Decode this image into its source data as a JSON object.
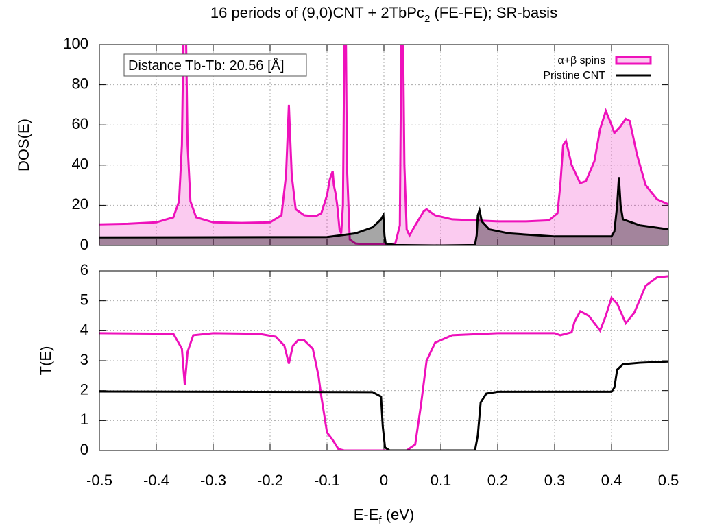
{
  "chart_data": [
    {
      "type": "area",
      "title": [
        "16 periods of (9,0)CNT + 2TbPc",
        "2",
        " (FE-FE); SR-basis"
      ],
      "ylabel": "DOS(E)",
      "annotation": "Distance Tb-Tb: 20.56 [Å]",
      "xlim": [
        -0.5,
        0.5
      ],
      "xticks": [
        -0.5,
        -0.4,
        -0.3,
        -0.2,
        -0.1,
        0,
        0.1,
        0.2,
        0.3,
        0.4,
        0.5
      ],
      "ylim": [
        0,
        100
      ],
      "yticks": [
        0,
        20,
        40,
        60,
        80,
        100
      ],
      "grid": true,
      "legend": "top-right",
      "show_xtick_labels": false,
      "series": [
        {
          "name": "α+β spins",
          "color": "#ee11bb",
          "x": [
            -0.5,
            -0.45,
            -0.4,
            -0.37,
            -0.36,
            -0.355,
            -0.35,
            -0.345,
            -0.34,
            -0.33,
            -0.3,
            -0.25,
            -0.2,
            -0.18,
            -0.172,
            -0.167,
            -0.162,
            -0.155,
            -0.14,
            -0.12,
            -0.11,
            -0.1,
            -0.095,
            -0.09,
            -0.088,
            -0.085,
            -0.082,
            -0.078,
            -0.075,
            -0.072,
            -0.068,
            -0.065,
            -0.06,
            -0.05,
            -0.03,
            0,
            0.02,
            0.028,
            0.032,
            0.036,
            0.04,
            0.045,
            0.055,
            0.07,
            0.075,
            0.09,
            0.12,
            0.2,
            0.25,
            0.29,
            0.305,
            0.31,
            0.315,
            0.32,
            0.33,
            0.345,
            0.355,
            0.37,
            0.38,
            0.39,
            0.4,
            0.405,
            0.415,
            0.425,
            0.432,
            0.445,
            0.46,
            0.48,
            0.5
          ],
          "values": [
            10.5,
            10.8,
            11.5,
            14,
            22,
            50,
            150,
            50,
            22,
            14,
            11.5,
            11.2,
            11.5,
            15,
            35,
            70,
            35,
            18,
            15,
            14.5,
            16,
            25,
            33,
            37,
            30,
            26,
            20,
            8,
            6,
            20,
            150,
            40,
            3,
            1,
            0.5,
            0.5,
            1,
            10,
            150,
            40,
            8,
            5,
            10,
            17,
            18,
            15,
            13,
            12,
            12,
            12.5,
            16,
            30,
            50,
            52,
            40,
            31,
            32,
            42,
            58,
            67,
            60,
            56,
            59,
            63,
            62,
            45,
            30,
            23,
            20.5
          ]
        },
        {
          "name": "Pristine CNT",
          "color": "#000000",
          "x": [
            -0.5,
            -0.1,
            -0.05,
            -0.02,
            -0.005,
            -0.001,
            0.001,
            0.003,
            0.02,
            0.1,
            0.16,
            0.163,
            0.165,
            0.168,
            0.172,
            0.185,
            0.22,
            0.3,
            0.4,
            0.405,
            0.41,
            0.413,
            0.416,
            0.42,
            0.45,
            0.5
          ],
          "values": [
            4,
            4.2,
            6,
            9,
            13,
            15,
            5,
            1,
            0.2,
            0,
            0.2,
            5,
            15,
            17.5,
            12,
            8,
            6,
            4.5,
            4.5,
            7,
            20,
            34,
            20,
            13,
            10,
            8
          ]
        }
      ]
    },
    {
      "type": "line",
      "ylabel": "T(E)",
      "xlabel": [
        "E-E",
        "f",
        " (eV)"
      ],
      "xlim": [
        -0.5,
        0.5
      ],
      "xticks": [
        -0.5,
        -0.4,
        -0.3,
        -0.2,
        -0.1,
        0,
        0.1,
        0.2,
        0.3,
        0.4,
        0.5
      ],
      "ylim": [
        0,
        6
      ],
      "yticks": [
        0,
        1,
        2,
        3,
        4,
        5,
        6
      ],
      "grid": true,
      "show_xtick_labels": true,
      "series": [
        {
          "color": "#ee11bb",
          "x": [
            -0.5,
            -0.37,
            -0.355,
            -0.35,
            -0.345,
            -0.335,
            -0.3,
            -0.22,
            -0.19,
            -0.175,
            -0.167,
            -0.16,
            -0.15,
            -0.14,
            -0.125,
            -0.115,
            -0.11,
            -0.1,
            -0.09,
            -0.08,
            -0.07,
            0.04,
            0.055,
            0.065,
            0.075,
            0.09,
            0.12,
            0.2,
            0.3,
            0.31,
            0.33,
            0.335,
            0.345,
            0.36,
            0.38,
            0.39,
            0.4,
            0.41,
            0.425,
            0.44,
            0.46,
            0.48,
            0.5
          ],
          "values": [
            3.92,
            3.9,
            3.4,
            2.2,
            3.3,
            3.85,
            3.92,
            3.9,
            3.8,
            3.5,
            2.9,
            3.5,
            3.7,
            3.68,
            3.4,
            2.5,
            1.8,
            0.6,
            0.35,
            0.05,
            0,
            0,
            0.2,
            1.5,
            3.0,
            3.6,
            3.85,
            3.92,
            3.92,
            3.85,
            3.95,
            4.3,
            4.65,
            4.5,
            4.0,
            4.5,
            5.1,
            4.9,
            4.25,
            4.6,
            5.5,
            5.78,
            5.82
          ]
        },
        {
          "color": "#000000",
          "x": [
            -0.5,
            -0.02,
            -0.005,
            -0.002,
            0.002,
            0.01,
            0.16,
            0.165,
            0.17,
            0.18,
            0.2,
            0.4,
            0.405,
            0.41,
            0.42,
            0.45,
            0.5
          ],
          "values": [
            1.97,
            1.95,
            1.8,
            0.8,
            0.1,
            0,
            0,
            0.5,
            1.6,
            1.9,
            1.96,
            1.96,
            2.1,
            2.7,
            2.88,
            2.93,
            2.97
          ]
        }
      ]
    }
  ]
}
